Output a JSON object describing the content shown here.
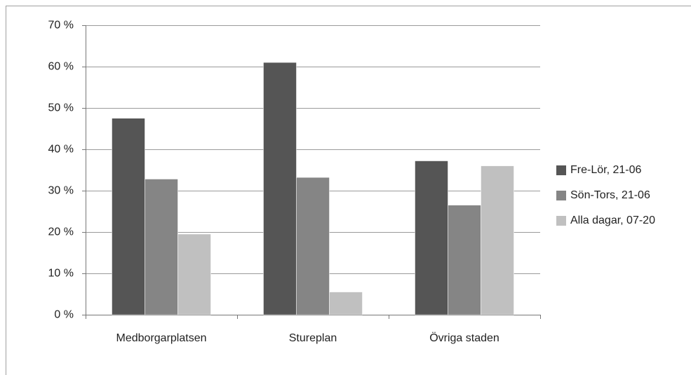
{
  "chart_data": {
    "type": "bar",
    "categories": [
      "Medborgarplatsen",
      "Stureplan",
      "Övriga staden"
    ],
    "series": [
      {
        "name": "Fre-Lör, 21-06",
        "color": "#555555",
        "values": [
          47.5,
          61,
          37.2
        ]
      },
      {
        "name": "Sön-Tors, 21-06",
        "color": "#858585",
        "values": [
          32.8,
          33.2,
          26.5
        ]
      },
      {
        "name": "Alla dagar, 07-20",
        "color": "#c0c0c0",
        "values": [
          19.5,
          5.5,
          36
        ]
      }
    ],
    "ylim": [
      0,
      70
    ],
    "yticks": [
      {
        "value": 0,
        "label": "0 %"
      },
      {
        "value": 10,
        "label": "10 %"
      },
      {
        "value": 20,
        "label": "20 %"
      },
      {
        "value": 30,
        "label": "30 %"
      },
      {
        "value": 40,
        "label": "40 %"
      },
      {
        "value": 50,
        "label": "50 %"
      },
      {
        "value": 60,
        "label": "60 %"
      },
      {
        "value": 70,
        "label": "70 %"
      }
    ],
    "grid": true,
    "legend": "right"
  }
}
